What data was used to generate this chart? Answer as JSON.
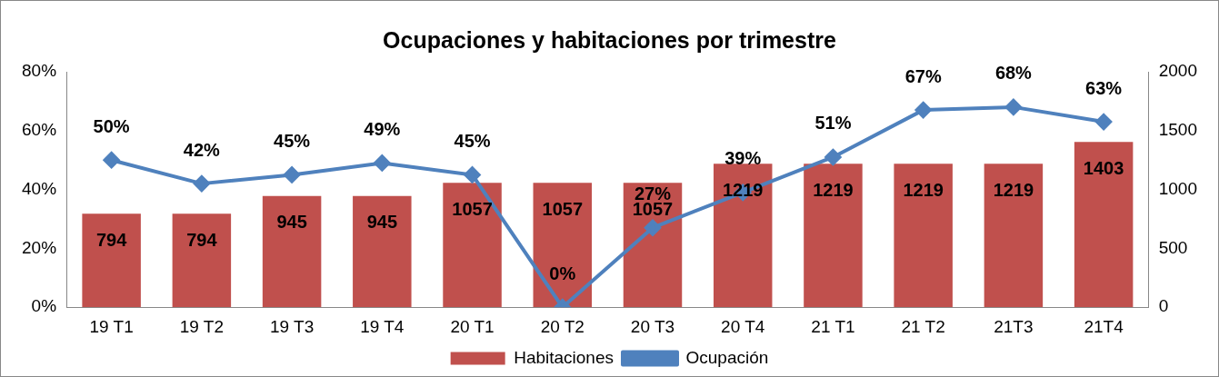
{
  "chart_data": {
    "type": "bar",
    "title": "Ocupaciones y habitaciones por trimestre",
    "categories": [
      "19 T1",
      "19 T2",
      "19 T3",
      "19 T4",
      "20 T1",
      "20 T2",
      "20 T3",
      "20 T4",
      "21 T1",
      "21 T2",
      "21T3",
      "21T4"
    ],
    "series": [
      {
        "name": "Habitaciones",
        "type": "bar",
        "axis": "y2",
        "color": "#c0504d",
        "values": [
          794,
          794,
          945,
          945,
          1057,
          1057,
          1057,
          1219,
          1219,
          1219,
          1219,
          1403
        ]
      },
      {
        "name": "Ocupación",
        "type": "line",
        "color": "#4f81bd",
        "values": [
          50,
          42,
          45,
          49,
          45,
          0,
          27,
          39,
          51,
          67,
          68,
          63
        ],
        "value_labels": [
          "50%",
          "42%",
          "45%",
          "49%",
          "45%",
          "0%",
          "27%",
          "39%",
          "51%",
          "67%",
          "68%",
          "63%"
        ]
      }
    ],
    "ylim": [
      0,
      80
    ],
    "yticks": [
      {
        "value": 0,
        "label": "0%"
      },
      {
        "value": 20,
        "label": "20%"
      },
      {
        "value": 40,
        "label": "40%"
      },
      {
        "value": 60,
        "label": "60%"
      },
      {
        "value": 80,
        "label": "80%"
      }
    ],
    "y2lim": [
      0,
      2000
    ],
    "y2ticks": [
      0,
      500,
      1000,
      1500,
      2000
    ],
    "data_labels": true,
    "marker": "diamond",
    "line_style": "solid",
    "grid": false,
    "legend": "bottom"
  }
}
